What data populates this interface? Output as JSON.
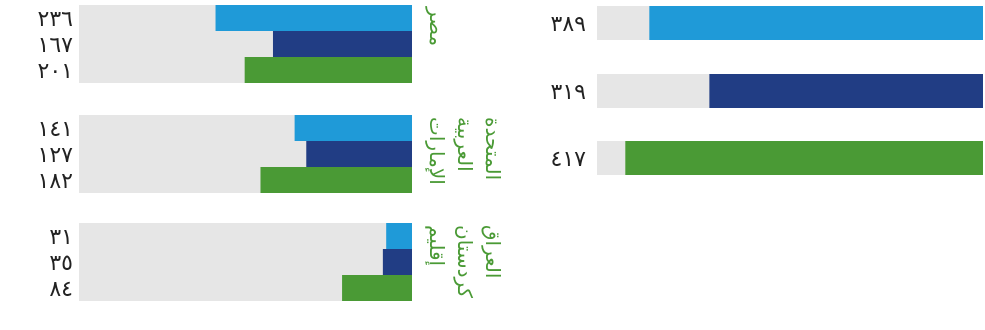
{
  "chart_data": [
    {
      "type": "bar",
      "orientation": "horizontal",
      "colors": [
        "#1f9ad8",
        "#213d84",
        "#4a9a35"
      ],
      "track_color": "#e6e6e6",
      "series": [
        {
          "value": 389,
          "label": "٣٨٩"
        },
        {
          "value": 319,
          "label": "٣١٩"
        },
        {
          "value": 417,
          "label": "٤١٧"
        }
      ]
    },
    {
      "type": "bar",
      "orientation": "horizontal",
      "colors": [
        "#1f9ad8",
        "#213d84",
        "#4a9a35"
      ],
      "track_color": "#e6e6e6",
      "xlim": [
        0,
        400
      ],
      "groups": [
        {
          "name_lines": [
            "مصر"
          ],
          "values": [
            236,
            167,
            201
          ],
          "labels": [
            "٢٣٦",
            "١٦٧",
            "٢٠١"
          ]
        },
        {
          "name_lines": [
            "الإمارات",
            "العربية",
            "المتحدة"
          ],
          "values": [
            141,
            127,
            182
          ],
          "labels": [
            "١٤١",
            "١٢٧",
            "١٨٢"
          ]
        },
        {
          "name_lines": [
            "إقليم",
            "كردستان",
            "العراق"
          ],
          "values": [
            31,
            35,
            84
          ],
          "labels": [
            "٣١",
            "٣٥",
            "٨٤"
          ]
        }
      ]
    }
  ]
}
